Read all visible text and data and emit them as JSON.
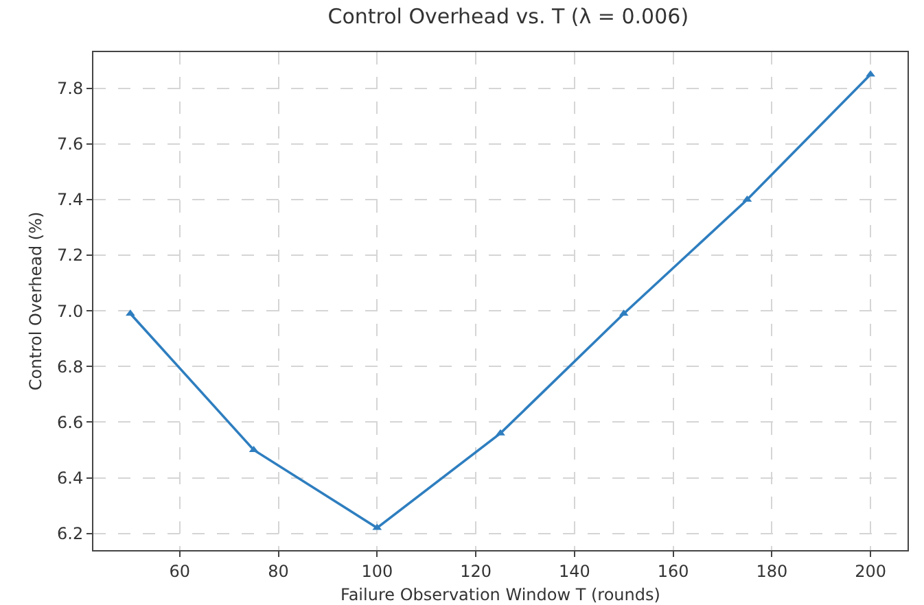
{
  "chart_data": {
    "type": "line",
    "title": "Control Overhead vs. T (λ = 0.006)",
    "xlabel": "Failure Observation Window T (rounds)",
    "ylabel": "Control Overhead (%)",
    "x": [
      50,
      75,
      100,
      125,
      150,
      175,
      200
    ],
    "series": [
      {
        "color": "#2e7ebf",
        "values": [
          6.99,
          6.5,
          6.22,
          6.56,
          6.99,
          7.4,
          7.85
        ]
      }
    ],
    "xlim": [
      42.5,
      207.5
    ],
    "xticks": [
      60,
      80,
      100,
      120,
      140,
      160,
      180,
      200
    ],
    "ylim": [
      6.14,
      7.93
    ],
    "yticks": [
      6.2,
      6.4,
      6.6,
      6.8,
      {
        "value": 7,
        "label": "7.0"
      },
      7.2,
      7.4,
      7.6,
      7.8
    ],
    "grid": true,
    "marker": "triangle",
    "line_style": "solid",
    "legend": false
  }
}
